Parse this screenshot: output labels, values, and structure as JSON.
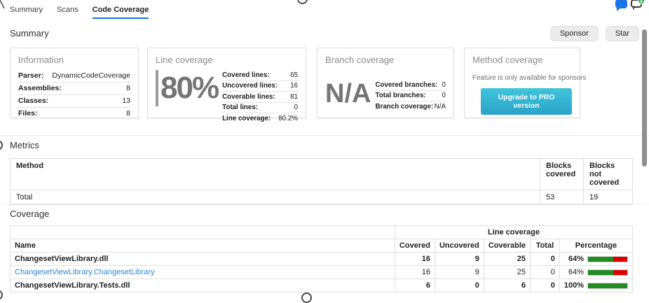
{
  "tabs": {
    "items": [
      {
        "label": "Summary",
        "active": false
      },
      {
        "label": "Scans",
        "active": false
      },
      {
        "label": "Code Coverage",
        "active": true
      }
    ]
  },
  "header_icons": {
    "chat_filled": "chat-bubble-icon",
    "chat_add": "add-comment-icon"
  },
  "summary_section": {
    "title": "Summary",
    "sponsor_label": "Sponsor",
    "star_label": "Star"
  },
  "cards": {
    "information": {
      "title": "Information",
      "rows": [
        {
          "label": "Parser:",
          "value": "DynamicCodeCoverage"
        },
        {
          "label": "Assemblies:",
          "value": "8"
        },
        {
          "label": "Classes:",
          "value": "13"
        },
        {
          "label": "Files:",
          "value": "8"
        }
      ]
    },
    "line_coverage": {
      "title": "Line coverage",
      "big_value": "80%",
      "rows": [
        {
          "label": "Covered lines:",
          "value": "65"
        },
        {
          "label": "Uncovered lines:",
          "value": "16"
        },
        {
          "label": "Coverable lines:",
          "value": "81"
        },
        {
          "label": "Total lines:",
          "value": "0"
        },
        {
          "label": "Line coverage:",
          "value": "80.2%"
        }
      ]
    },
    "branch_coverage": {
      "title": "Branch coverage",
      "big_value": "N/A",
      "rows": [
        {
          "label": "Covered branches:",
          "value": "0"
        },
        {
          "label": "Total branches:",
          "value": "0"
        },
        {
          "label": "Branch coverage:",
          "value": "N/A"
        }
      ]
    },
    "method_coverage": {
      "title": "Method coverage",
      "message": "Feature is only available for sponsors",
      "button_label": "Upgrade to PRO version"
    }
  },
  "metrics_section": {
    "title": "Metrics",
    "table": {
      "headers": {
        "method": "Method",
        "blocks_covered": "Blocks covered",
        "blocks_not_covered": "Blocks not covered"
      },
      "rows": [
        {
          "method": "Total",
          "blocks_covered": "53",
          "blocks_not_covered": "19"
        }
      ]
    }
  },
  "coverage_section": {
    "title": "Coverage",
    "table": {
      "group_header": "Line coverage",
      "headers": {
        "name": "Name",
        "covered": "Covered",
        "uncovered": "Uncovered",
        "coverable": "Coverable",
        "total": "Total",
        "percentage": "Percentage"
      },
      "rows": [
        {
          "name": "ChangesetViewLibrary.dll",
          "is_link": false,
          "covered": "16",
          "uncovered": "9",
          "coverable": "25",
          "total": "0",
          "percentage": "64%",
          "pct": 64
        },
        {
          "name": "ChangesetViewLibrary.ChangesetLibrary",
          "is_link": true,
          "covered": "16",
          "uncovered": "9",
          "coverable": "25",
          "total": "0",
          "percentage": "64%",
          "pct": 64
        },
        {
          "name": "ChangesetViewLibrary.Tests.dll",
          "is_link": false,
          "covered": "6",
          "uncovered": "0",
          "coverable": "6",
          "total": "0",
          "percentage": "100%",
          "pct": 100
        }
      ]
    }
  },
  "colors": {
    "accent_blue": "#1a73e8",
    "link_blue": "#2e86d2",
    "bar_green": "#228b22",
    "bar_red": "#dd0000",
    "button_cyan": "#35b9d6",
    "big_value_gray": "#757575"
  }
}
